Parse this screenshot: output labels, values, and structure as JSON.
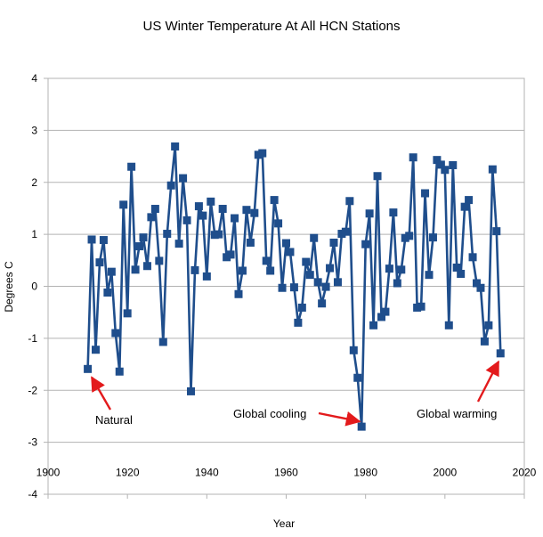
{
  "chart_data": {
    "type": "line",
    "title": "US Winter Temperature At All HCN Stations",
    "xlabel": "Year",
    "ylabel": "Degrees C",
    "xlim": [
      1900,
      2020
    ],
    "ylim": [
      -4,
      4
    ],
    "xticks": [
      1900,
      1920,
      1940,
      1960,
      1980,
      2000,
      2020
    ],
    "yticks": [
      -4,
      -3,
      -2,
      -1,
      0,
      1,
      2,
      3,
      4
    ],
    "grid": "horizontal",
    "legend": "none",
    "colors": {
      "series": "#1f4e8c",
      "annotation": "#e31a1c",
      "grid": "#b3b3b3"
    },
    "series": [
      {
        "name": "US Winter Temperature",
        "x": [
          1910,
          1911,
          1912,
          1913,
          1914,
          1915,
          1916,
          1917,
          1918,
          1919,
          1920,
          1921,
          1922,
          1923,
          1924,
          1925,
          1926,
          1927,
          1928,
          1929,
          1930,
          1931,
          1932,
          1933,
          1934,
          1935,
          1936,
          1937,
          1938,
          1939,
          1940,
          1941,
          1942,
          1943,
          1944,
          1945,
          1946,
          1947,
          1948,
          1949,
          1950,
          1951,
          1952,
          1953,
          1954,
          1955,
          1956,
          1957,
          1958,
          1959,
          1960,
          1961,
          1962,
          1963,
          1964,
          1965,
          1966,
          1967,
          1968,
          1969,
          1970,
          1971,
          1972,
          1973,
          1974,
          1975,
          1976,
          1977,
          1978,
          1979,
          1980,
          1981,
          1982,
          1983,
          1984,
          1985,
          1986,
          1987,
          1988,
          1989,
          1990,
          1991,
          1992,
          1993,
          1994,
          1995,
          1996,
          1997,
          1998,
          1999,
          2000,
          2001,
          2002,
          2003,
          2004,
          2005,
          2006,
          2007,
          2008,
          2009,
          2010,
          2011,
          2012,
          2013,
          2014
        ],
        "values": [
          -1.59,
          0.9,
          -1.22,
          0.46,
          0.89,
          -0.12,
          0.28,
          -0.9,
          -1.64,
          1.57,
          -0.52,
          2.3,
          0.32,
          0.77,
          0.94,
          0.39,
          1.33,
          1.49,
          0.49,
          -1.07,
          1.01,
          1.94,
          2.69,
          0.82,
          2.08,
          1.27,
          -2.02,
          0.31,
          1.54,
          1.36,
          0.19,
          1.63,
          0.99,
          1.0,
          1.49,
          0.56,
          0.61,
          1.31,
          -0.15,
          0.3,
          1.47,
          0.84,
          1.41,
          2.53,
          2.56,
          0.49,
          0.3,
          1.66,
          1.21,
          -0.03,
          0.83,
          0.66,
          -0.02,
          -0.7,
          -0.41,
          0.47,
          0.22,
          0.93,
          0.08,
          -0.33,
          -0.01,
          0.35,
          0.84,
          0.08,
          1.01,
          1.05,
          1.64,
          -1.23,
          -1.76,
          -2.7,
          0.81,
          1.4,
          -0.75,
          2.12,
          -0.59,
          -0.49,
          0.34,
          1.42,
          0.06,
          0.32,
          0.93,
          0.97,
          2.48,
          -0.41,
          -0.39,
          1.79,
          0.22,
          0.94,
          2.43,
          2.34,
          2.24,
          -0.75,
          2.33,
          0.36,
          0.24,
          1.53,
          1.66,
          0.56,
          0.06,
          -0.03,
          -1.06,
          -0.75,
          2.25,
          1.06,
          -1.29
        ]
      }
    ],
    "annotations": [
      {
        "text": "Natural",
        "arrow_to": [
          1911,
          -1.75
        ]
      },
      {
        "text": "Global cooling",
        "arrow_to": [
          1978.5,
          -2.6
        ]
      },
      {
        "text": "Global warming",
        "arrow_to": [
          2013.5,
          -1.45
        ]
      }
    ]
  }
}
